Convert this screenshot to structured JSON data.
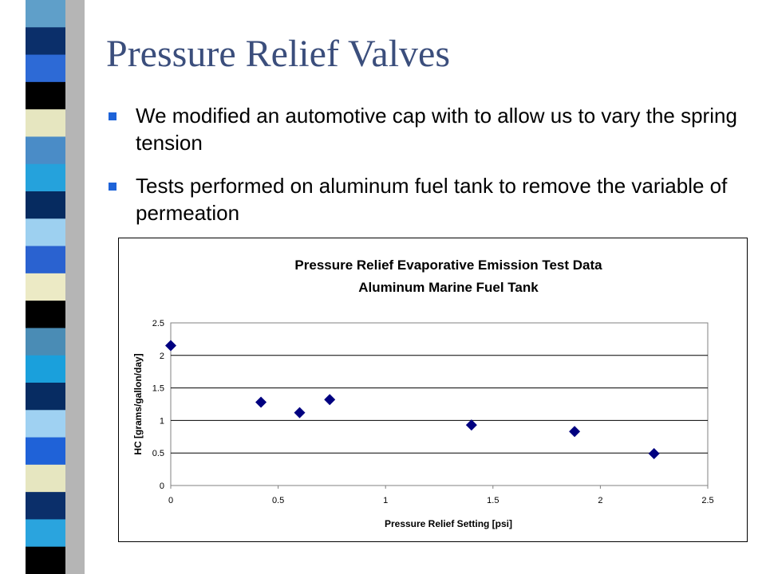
{
  "slide": {
    "title": "Pressure Relief Valves",
    "bullets": [
      "We modified an automotive cap with to allow us to vary the spring tension",
      "Tests performed on aluminum fuel tank to remove the variable of permeation"
    ],
    "bullet_color": "#1e63d8",
    "title_color": "#3b4e7c"
  },
  "decor": {
    "stripe_colors": [
      "#5f9fc9",
      "#0b2f6a",
      "#2d6ad6",
      "#000000",
      "#e6e6c0",
      "#4a8cc7",
      "#25a2dc",
      "#062b60",
      "#9dd0f0",
      "#2a62d0",
      "#eceac5",
      "#000000",
      "#4a8cb5",
      "#1aa0dc",
      "#072c62",
      "#9fd1f2",
      "#1f62d8",
      "#e6e6c0",
      "#0b2f6a",
      "#2aa4de",
      "#000000"
    ]
  },
  "chart_data": {
    "type": "scatter",
    "title": "Pressure Relief Evaporative Emission Test Data",
    "subtitle": "Aluminum Marine Fuel Tank",
    "xlabel": "Pressure Relief Setting [psi]",
    "ylabel": "HC [grams/gallon/day]",
    "xlim": [
      0,
      2.5
    ],
    "ylim": [
      0,
      2.5
    ],
    "xticks": [
      "0",
      "0.5",
      "1",
      "1.5",
      "2",
      "2.5"
    ],
    "yticks": [
      "0",
      "0.5",
      "1",
      "1.5",
      "2",
      "2.5"
    ],
    "grid": "horizontal",
    "legend": "none",
    "marker": "diamond",
    "marker_color": "#000080",
    "points": [
      {
        "x": 0.0,
        "y": 2.15
      },
      {
        "x": 0.42,
        "y": 1.28
      },
      {
        "x": 0.6,
        "y": 1.12
      },
      {
        "x": 0.74,
        "y": 1.32
      },
      {
        "x": 1.4,
        "y": 0.93
      },
      {
        "x": 1.88,
        "y": 0.83
      },
      {
        "x": 2.25,
        "y": 0.49
      }
    ]
  }
}
